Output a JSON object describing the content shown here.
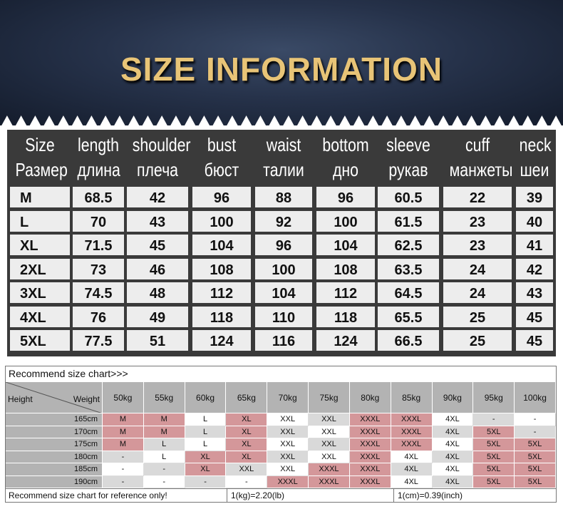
{
  "banner": {
    "title": "SIZE INFORMATION"
  },
  "size_table": {
    "headers": [
      {
        "en": "Size",
        "ru": "Размер"
      },
      {
        "en": "length",
        "ru": "длина"
      },
      {
        "en": "shoulder",
        "ru": "плеча"
      },
      {
        "en": "bust",
        "ru": "бюст"
      },
      {
        "en": "waist",
        "ru": "талии"
      },
      {
        "en": "bottom",
        "ru": "дно"
      },
      {
        "en": "sleeve",
        "ru": "рукав"
      },
      {
        "en": "cuff",
        "ru": "манжеты"
      },
      {
        "en": "neck",
        "ru": "шеи"
      }
    ],
    "rows": [
      [
        "M",
        "68.5",
        "42",
        "96",
        "88",
        "96",
        "60.5",
        "22",
        "39"
      ],
      [
        "L",
        "70",
        "43",
        "100",
        "92",
        "100",
        "61.5",
        "23",
        "40"
      ],
      [
        "XL",
        "71.5",
        "45",
        "104",
        "96",
        "104",
        "62.5",
        "23",
        "41"
      ],
      [
        "2XL",
        "73",
        "46",
        "108",
        "100",
        "108",
        "63.5",
        "24",
        "42"
      ],
      [
        "3XL",
        "74.5",
        "48",
        "112",
        "104",
        "112",
        "64.5",
        "24",
        "43"
      ],
      [
        "4XL",
        "76",
        "49",
        "118",
        "110",
        "118",
        "65.5",
        "25",
        "45"
      ],
      [
        "5XL",
        "77.5",
        "51",
        "124",
        "116",
        "124",
        "66.5",
        "25",
        "45"
      ]
    ]
  },
  "recommend": {
    "title": "Recommend size chart>>>",
    "corner_height": "Height",
    "corner_weight": "Weight",
    "weights": [
      "50kg",
      "55kg",
      "60kg",
      "65kg",
      "70kg",
      "75kg",
      "80kg",
      "85kg",
      "90kg",
      "95kg",
      "100kg"
    ],
    "rows": [
      {
        "height": "165cm",
        "cells": [
          "M",
          "M",
          "L",
          "XL",
          "XXL",
          "XXL",
          "XXXL",
          "XXXL",
          "4XL",
          "-",
          "-"
        ]
      },
      {
        "height": "170cm",
        "cells": [
          "M",
          "M",
          "L",
          "XL",
          "XXL",
          "XXL",
          "XXXL",
          "XXXL",
          "4XL",
          "5XL",
          "-"
        ]
      },
      {
        "height": "175cm",
        "cells": [
          "M",
          "L",
          "L",
          "XL",
          "XXL",
          "XXL",
          "XXXL",
          "XXXL",
          "4XL",
          "5XL",
          "5XL"
        ]
      },
      {
        "height": "180cm",
        "cells": [
          "-",
          "L",
          "XL",
          "XL",
          "XXL",
          "XXL",
          "XXXL",
          "4XL",
          "4XL",
          "5XL",
          "5XL"
        ]
      },
      {
        "height": "185cm",
        "cells": [
          "-",
          "-",
          "XL",
          "XXL",
          "XXL",
          "XXXL",
          "XXXL",
          "4XL",
          "4XL",
          "5XL",
          "5XL"
        ]
      },
      {
        "height": "190cm",
        "cells": [
          "-",
          "-",
          "-",
          "-",
          "XXXL",
          "XXXL",
          "XXXL",
          "4XL",
          "4XL",
          "5XL",
          "5XL"
        ]
      }
    ],
    "footer": {
      "note": "Recommend size chart for reference only!",
      "kg": "1(kg)=2.20(lb)",
      "cm": "1(cm)=0.39(inch)"
    },
    "colors": {
      "pink": "#d4979a",
      "gray": "#d9d9d9",
      "white": "#ffffff",
      "header": "#b3b3b3"
    }
  }
}
